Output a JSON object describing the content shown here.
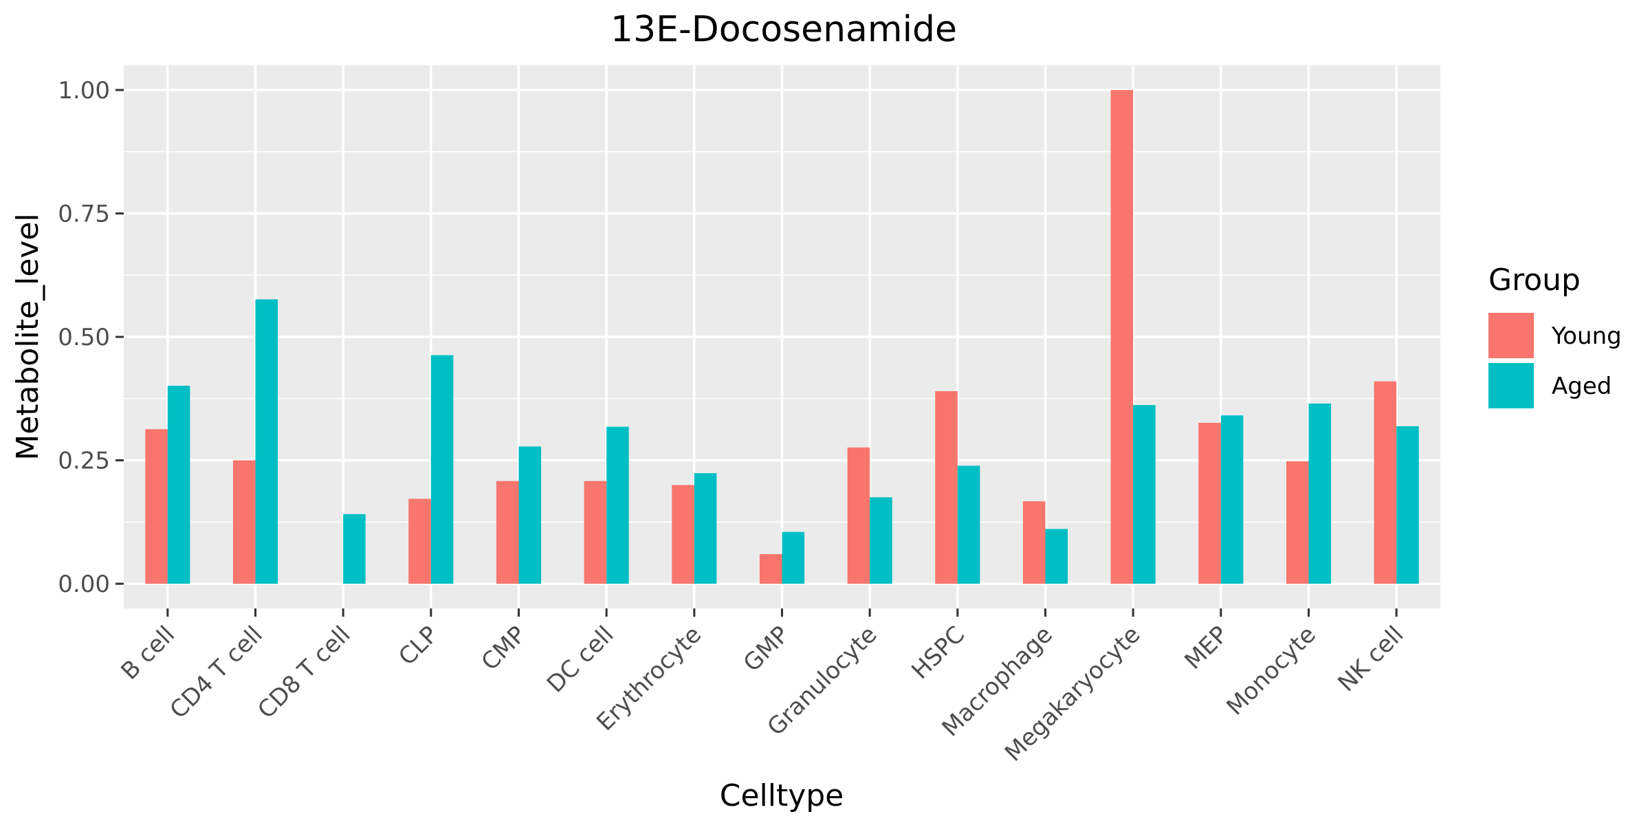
{
  "chart_data": {
    "type": "bar",
    "title": "13E-Docosenamide",
    "xlabel": "Celltype",
    "ylabel": "Metabolite_level",
    "categories": [
      "B cell",
      "CD4 T cell",
      "CD8 T cell",
      "CLP",
      "CMP",
      "DC cell",
      "Erythrocyte",
      "GMP",
      "Granulocyte",
      "HSPC",
      "Macrophage",
      "Megakaryocyte",
      "MEP",
      "Monocyte",
      "NK cell"
    ],
    "series": [
      {
        "name": "Young",
        "color": "#F8766D",
        "values": [
          0.313,
          0.25,
          0.0,
          0.172,
          0.208,
          0.208,
          0.2,
          0.06,
          0.276,
          0.39,
          0.167,
          1.0,
          0.326,
          0.248,
          0.41
        ]
      },
      {
        "name": "Aged",
        "color": "#00BFC4",
        "values": [
          0.401,
          0.576,
          0.141,
          0.463,
          0.278,
          0.318,
          0.224,
          0.105,
          0.175,
          0.239,
          0.111,
          0.362,
          0.341,
          0.365,
          0.319
        ]
      }
    ],
    "ylim": [
      -0.05,
      1.05
    ],
    "yticks": [
      0.0,
      0.25,
      0.5,
      0.75,
      1.0
    ],
    "ytick_labels": [
      "0.00",
      "0.25",
      "0.50",
      "0.75",
      "1.00"
    ],
    "grid": true,
    "legend": {
      "title": "Group",
      "position": "right"
    }
  }
}
